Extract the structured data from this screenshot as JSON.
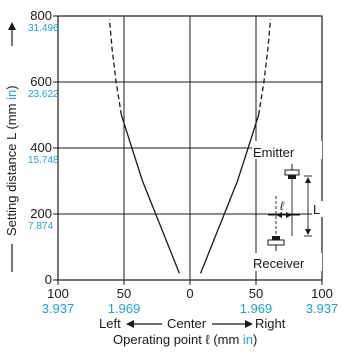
{
  "chart_data": {
    "type": "line",
    "x_unit_label": "Operating point ℓ (mm in)",
    "y_unit_label": "Setting distance L (mm in)",
    "xlim": [
      -100,
      100
    ],
    "ylim": [
      0,
      800
    ],
    "x_ticks": [
      {
        "value": -100,
        "mm": "100",
        "in": "3.937"
      },
      {
        "value": -50,
        "mm": "50",
        "in": "1.969"
      },
      {
        "value": 0,
        "mm": "0",
        "in": ""
      },
      {
        "value": 50,
        "mm": "50",
        "in": "1.969"
      },
      {
        "value": 100,
        "mm": "100",
        "in": "3.937"
      }
    ],
    "y_ticks": [
      {
        "value": 0,
        "mm": "0",
        "in": ""
      },
      {
        "value": 200,
        "mm": "200",
        "in": "7.874"
      },
      {
        "value": 400,
        "mm": "400",
        "in": "15.748"
      },
      {
        "value": 600,
        "mm": "600",
        "in": "23.622"
      },
      {
        "value": 800,
        "mm": "800",
        "in": "31.496"
      }
    ],
    "grid": true,
    "series": [
      {
        "side": "left",
        "style": "solid",
        "points": [
          [
            -8,
            20
          ],
          [
            -16,
            100
          ],
          [
            -26,
            200
          ],
          [
            -36,
            300
          ],
          [
            -44,
            400
          ],
          [
            -52,
            500
          ]
        ]
      },
      {
        "side": "left",
        "style": "dashed",
        "points": [
          [
            -52,
            500
          ],
          [
            -56,
            600
          ],
          [
            -59,
            700
          ],
          [
            -61,
            790
          ]
        ]
      },
      {
        "side": "right",
        "style": "solid",
        "points": [
          [
            8,
            20
          ],
          [
            16,
            100
          ],
          [
            26,
            200
          ],
          [
            36,
            300
          ],
          [
            44,
            400
          ],
          [
            52,
            500
          ]
        ]
      },
      {
        "side": "right",
        "style": "dashed",
        "points": [
          [
            52,
            500
          ],
          [
            56,
            600
          ],
          [
            59,
            700
          ],
          [
            61,
            790
          ]
        ]
      }
    ]
  },
  "labels": {
    "y_axis_title_prefix": "Setting distance L (mm ",
    "y_axis_title_in": "in",
    "y_axis_title_suffix": ")",
    "x_axis_title_prefix": "Operating point ℓ (mm ",
    "x_axis_title_in": "in",
    "x_axis_title_suffix": ")",
    "left": "Left",
    "center": "Center",
    "right": "Right",
    "emitter": "Emitter",
    "receiver": "Receiver",
    "diagram_ell": "ℓ",
    "diagram_L": "L"
  },
  "colors": {
    "text": "#1a1a1a",
    "inch": "#1aa3d9",
    "grid": "#1a1a1a",
    "curve": "#1a1a1a"
  }
}
